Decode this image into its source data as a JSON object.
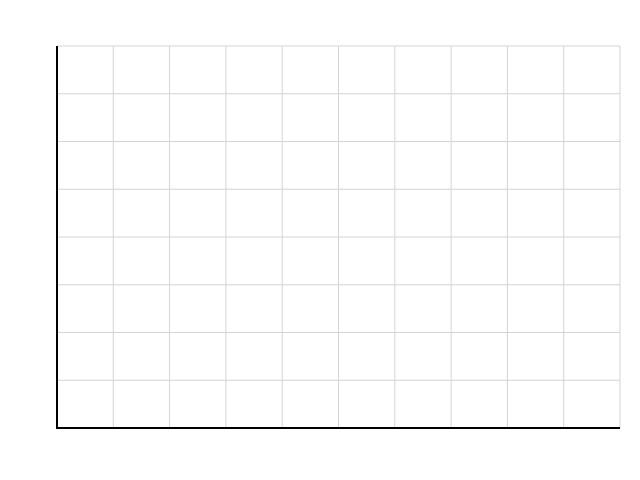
{
  "chart_data": {
    "type": "line",
    "title": "",
    "xlabel": "",
    "ylabel": "",
    "series": [],
    "grid": true,
    "vertical_gridlines": 10,
    "horizontal_gridlines": 8,
    "tick_labels_visible": false,
    "legend": "none"
  },
  "colors": {
    "background": "#ffffff",
    "grid": "#d4d4d4",
    "axis": "#000000"
  }
}
